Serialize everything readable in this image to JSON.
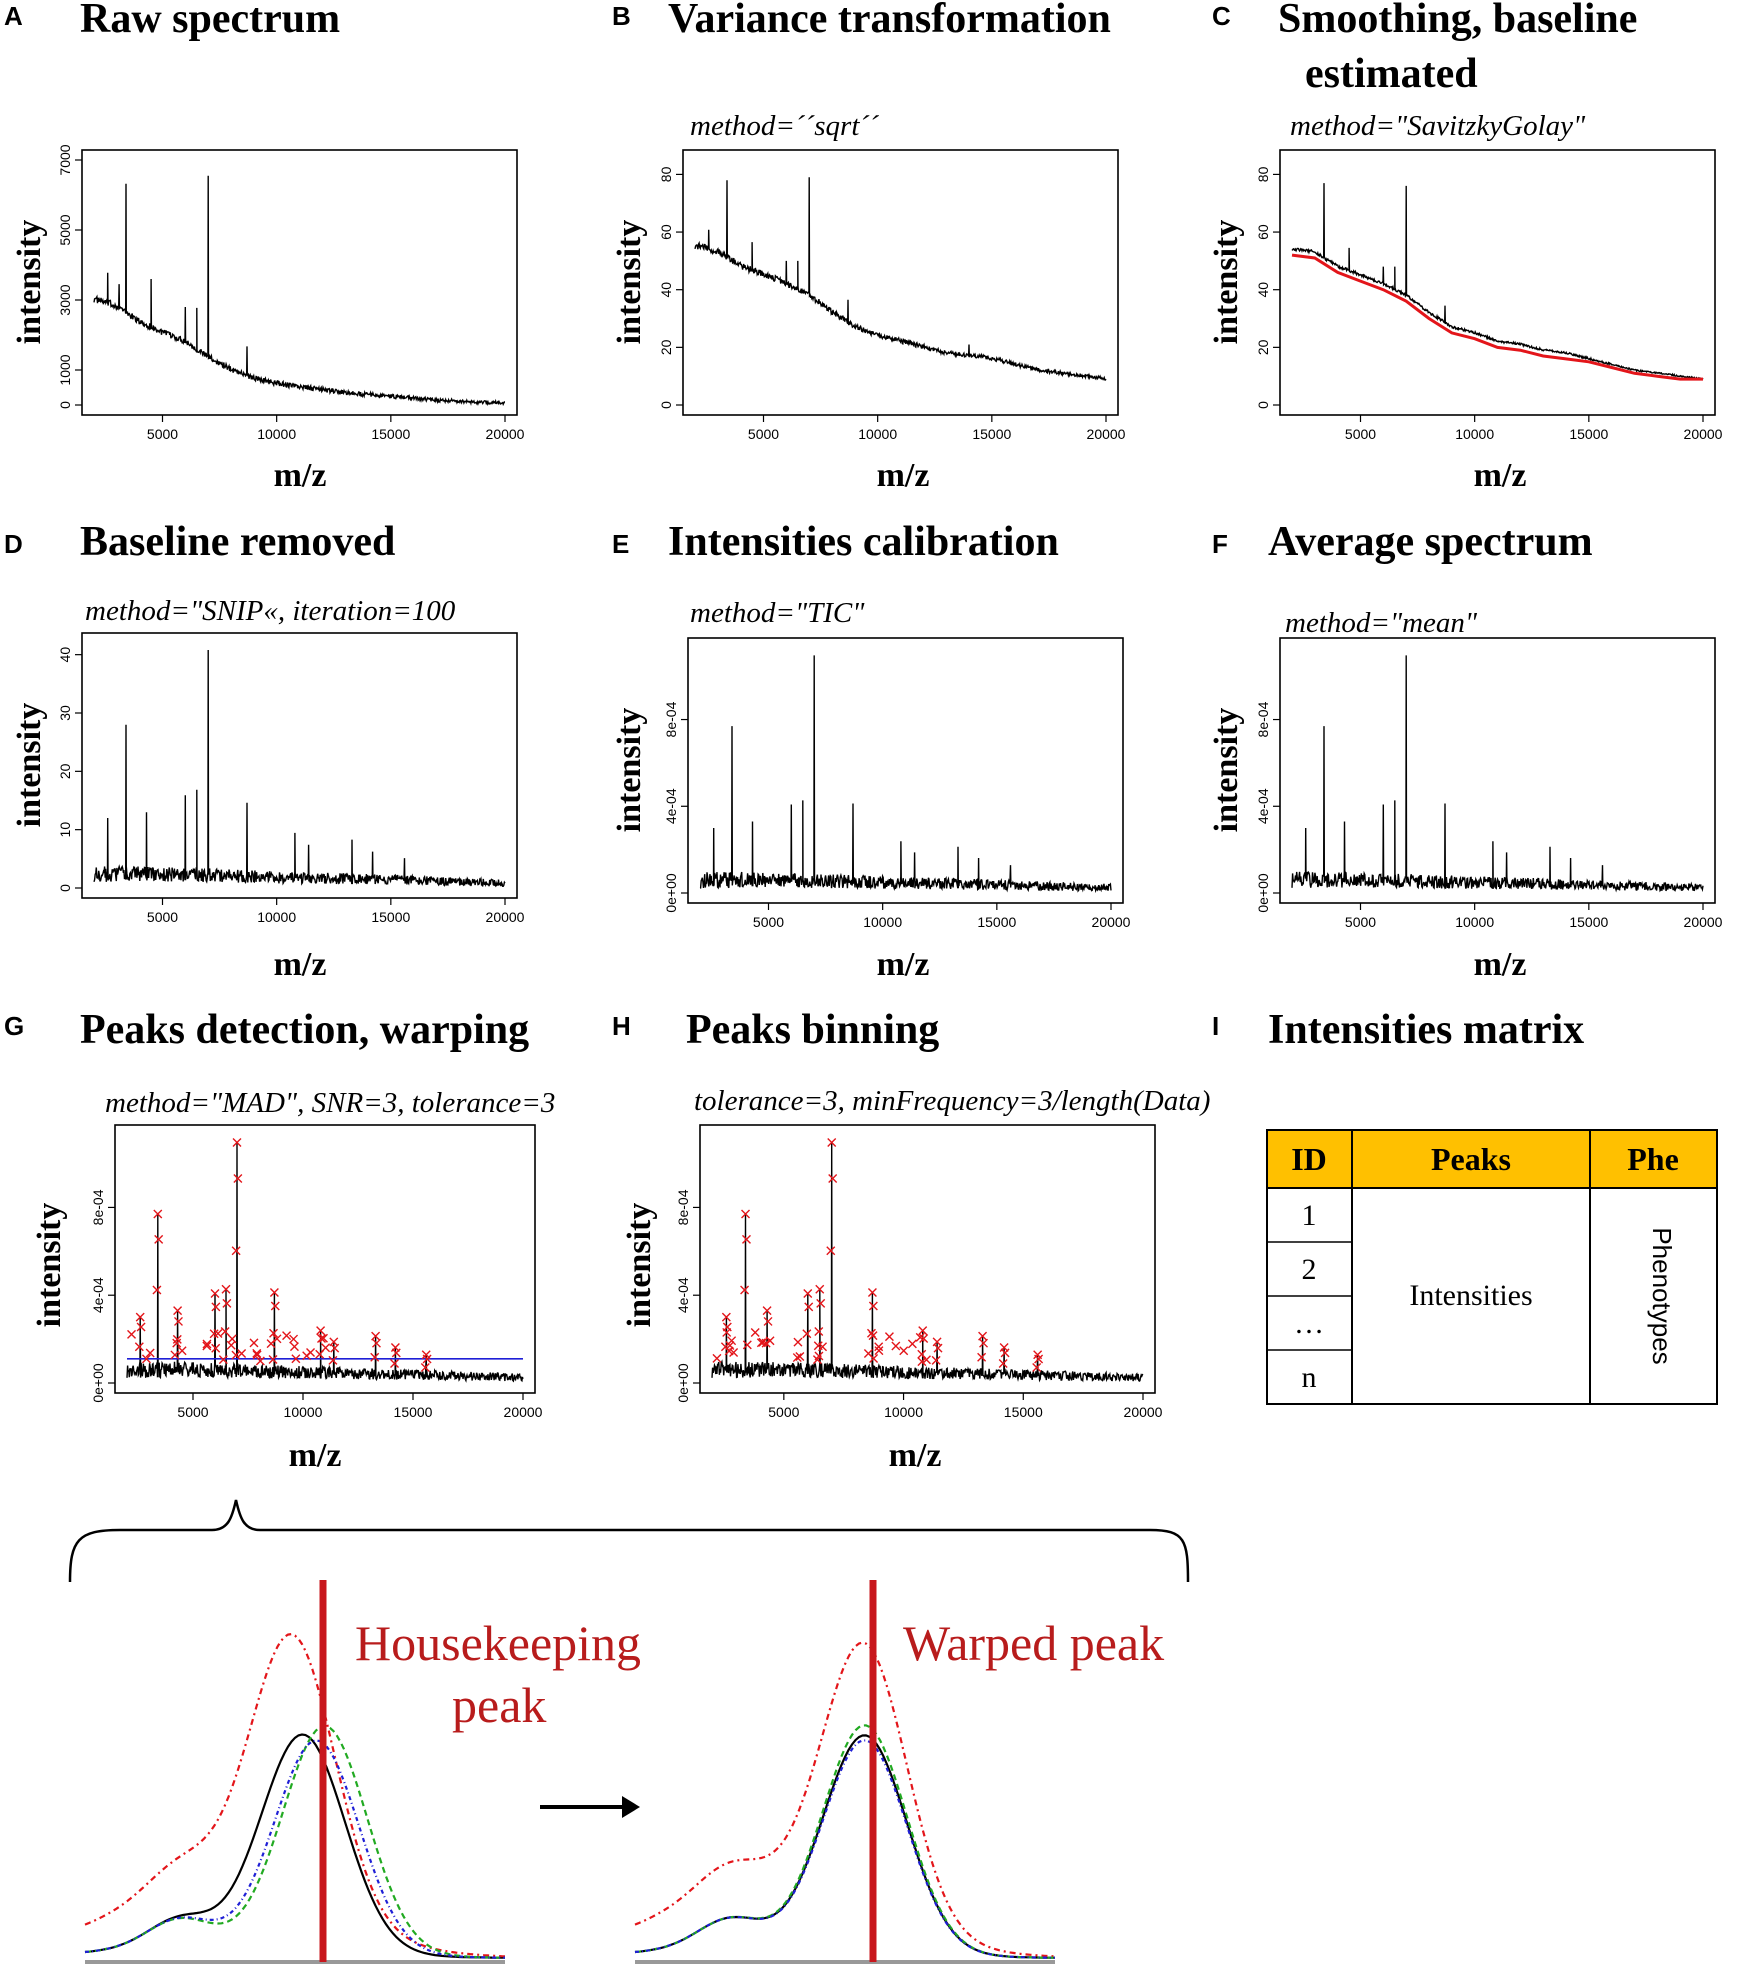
{
  "chart_data": [
    {
      "panel": "A",
      "type": "line",
      "title": "Raw spectrum",
      "method": "",
      "xlabel": "m/z",
      "ylabel": "intensity",
      "xlim": [
        2000,
        20000
      ],
      "ylim": [
        0,
        7000
      ],
      "xticks": [
        "5000",
        "10000",
        "15000",
        "20000"
      ],
      "yticks": [
        "0",
        "1000",
        "3000",
        "5000",
        "7000"
      ],
      "ytick_values": [
        0,
        1000,
        3000,
        5000,
        7000
      ],
      "base_points": [
        [
          2000,
          3000
        ],
        [
          3000,
          2800
        ],
        [
          4000,
          2350
        ],
        [
          5000,
          2050
        ],
        [
          6000,
          1800
        ],
        [
          7000,
          1350
        ],
        [
          8000,
          1000
        ],
        [
          9000,
          750
        ],
        [
          10000,
          600
        ],
        [
          11000,
          500
        ],
        [
          12000,
          420
        ],
        [
          13000,
          330
        ],
        [
          14000,
          280
        ],
        [
          15000,
          230
        ],
        [
          16000,
          180
        ],
        [
          17000,
          130
        ],
        [
          18000,
          90
        ],
        [
          19000,
          60
        ],
        [
          20000,
          50
        ]
      ],
      "noise": 180,
      "peaks": [
        [
          3400,
          3700
        ],
        [
          7000,
          5200
        ],
        [
          4500,
          1400
        ],
        [
          6000,
          1000
        ],
        [
          6500,
          1200
        ],
        [
          8700,
          850
        ],
        [
          2600,
          900
        ],
        [
          3100,
          700
        ]
      ],
      "baseline": null,
      "threshold": null,
      "markers": false
    },
    {
      "panel": "B",
      "type": "line",
      "title": "Variance transformation",
      "method": "method=´´sqrt´´",
      "xlabel": "m/z",
      "ylabel": "intensity",
      "xlim": [
        2000,
        20000
      ],
      "ylim": [
        0,
        85
      ],
      "xticks": [
        "5000",
        "10000",
        "15000",
        "20000"
      ],
      "yticks": [
        "0",
        "20",
        "40",
        "60",
        "80"
      ],
      "ytick_values": [
        0,
        20,
        40,
        60,
        80
      ],
      "base_points": [
        [
          2000,
          55
        ],
        [
          3000,
          53
        ],
        [
          4000,
          48
        ],
        [
          5000,
          45
        ],
        [
          6000,
          42
        ],
        [
          7000,
          38
        ],
        [
          8000,
          32
        ],
        [
          9000,
          27
        ],
        [
          10000,
          24
        ],
        [
          11000,
          22
        ],
        [
          12000,
          20
        ],
        [
          13000,
          18
        ],
        [
          14000,
          17
        ],
        [
          15000,
          16
        ],
        [
          16000,
          14
        ],
        [
          17000,
          12
        ],
        [
          18000,
          11
        ],
        [
          19000,
          10
        ],
        [
          20000,
          9
        ]
      ],
      "noise": 2.2,
      "peaks": [
        [
          3400,
          27
        ],
        [
          7000,
          41
        ],
        [
          4500,
          10
        ],
        [
          6000,
          8
        ],
        [
          6500,
          10
        ],
        [
          8700,
          8
        ],
        [
          2600,
          7
        ],
        [
          14000,
          4
        ]
      ],
      "baseline": null,
      "threshold": null,
      "markers": false
    },
    {
      "panel": "C",
      "type": "line",
      "title": "Smoothing, baseline estimated",
      "title_lines": [
        "Smoothing, baseline",
        "estimated"
      ],
      "method": "method=\"SavitzkyGolay\"",
      "xlabel": "m/z",
      "ylabel": "intensity",
      "xlim": [
        2000,
        20000
      ],
      "ylim": [
        0,
        85
      ],
      "xticks": [
        "5000",
        "10000",
        "15000",
        "20000"
      ],
      "yticks": [
        "0",
        "20",
        "40",
        "60",
        "80"
      ],
      "ytick_values": [
        0,
        20,
        40,
        60,
        80
      ],
      "base_points": [
        [
          2000,
          54
        ],
        [
          3000,
          53
        ],
        [
          4000,
          48
        ],
        [
          5000,
          45
        ],
        [
          6000,
          42
        ],
        [
          7000,
          38
        ],
        [
          8000,
          32
        ],
        [
          9000,
          27
        ],
        [
          10000,
          25
        ],
        [
          11000,
          22
        ],
        [
          12000,
          21
        ],
        [
          13000,
          19
        ],
        [
          14000,
          18
        ],
        [
          15000,
          16
        ],
        [
          16000,
          14
        ],
        [
          17000,
          12
        ],
        [
          18000,
          11
        ],
        [
          19000,
          10
        ],
        [
          20000,
          9
        ]
      ],
      "noise": 1.0,
      "peaks": [
        [
          3400,
          26
        ],
        [
          7000,
          38
        ],
        [
          4500,
          8
        ],
        [
          6000,
          6
        ],
        [
          6500,
          8
        ],
        [
          8700,
          6
        ]
      ],
      "baseline": [
        [
          2000,
          52
        ],
        [
          3000,
          51
        ],
        [
          4000,
          46
        ],
        [
          5000,
          43
        ],
        [
          6000,
          40
        ],
        [
          7000,
          36
        ],
        [
          8000,
          30
        ],
        [
          9000,
          25
        ],
        [
          10000,
          23
        ],
        [
          11000,
          20
        ],
        [
          12000,
          19
        ],
        [
          13000,
          17
        ],
        [
          14000,
          16
        ],
        [
          15000,
          15
        ],
        [
          16000,
          13
        ],
        [
          17000,
          11
        ],
        [
          18000,
          10
        ],
        [
          19000,
          9
        ],
        [
          20000,
          9
        ]
      ],
      "baseline_color": "#e3151a",
      "threshold": null,
      "markers": false
    },
    {
      "panel": "D",
      "type": "line",
      "title": "Baseline removed",
      "method": "method=\"SNIP«, iteration=100",
      "xlabel": "m/z",
      "ylabel": "intensity",
      "xlim": [
        2000,
        20000
      ],
      "ylim": [
        0,
        42
      ],
      "xticks": [
        "5000",
        "10000",
        "15000",
        "20000"
      ],
      "yticks": [
        "0",
        "10",
        "20",
        "30",
        "40"
      ],
      "ytick_values": [
        0,
        10,
        20,
        30,
        40
      ],
      "base_points": [
        [
          2000,
          2
        ],
        [
          5000,
          2
        ],
        [
          10000,
          1.5
        ],
        [
          15000,
          1.2
        ],
        [
          20000,
          0.6
        ]
      ],
      "noise": 2.5,
      "peaks": [
        [
          3400,
          26
        ],
        [
          7000,
          39
        ],
        [
          4300,
          11
        ],
        [
          6000,
          14
        ],
        [
          6500,
          15
        ],
        [
          8700,
          13
        ],
        [
          2600,
          10
        ],
        [
          10800,
          8
        ],
        [
          11400,
          6
        ],
        [
          13300,
          7
        ],
        [
          14200,
          5
        ],
        [
          15600,
          4
        ]
      ],
      "baseline": null,
      "threshold": null,
      "markers": false
    },
    {
      "panel": "E",
      "type": "line",
      "title": "Intensities calibration",
      "method": "method=\"TIC\"",
      "xlabel": "m/z",
      "ylabel": "intensity",
      "xlim": [
        2000,
        20000
      ],
      "ylim": [
        0,
        0.00113
      ],
      "xticks": [
        "5000",
        "10000",
        "15000",
        "20000"
      ],
      "yticks": [
        "0e+00",
        "4e-04",
        "8e-04"
      ],
      "ytick_values": [
        0,
        0.0004,
        0.0008
      ],
      "base_points": [
        [
          2000,
          5e-05
        ],
        [
          5000,
          5e-05
        ],
        [
          10000,
          4e-05
        ],
        [
          15000,
          3e-05
        ],
        [
          20000,
          2e-05
        ]
      ],
      "noise": 7e-05,
      "peaks": [
        [
          3400,
          0.00072
        ],
        [
          7000,
          0.00105
        ],
        [
          4300,
          0.00028
        ],
        [
          6000,
          0.00036
        ],
        [
          6500,
          0.00038
        ],
        [
          8700,
          0.00037
        ],
        [
          2600,
          0.00025
        ],
        [
          10800,
          0.0002
        ],
        [
          11400,
          0.00015
        ],
        [
          13300,
          0.00018
        ],
        [
          14200,
          0.00013
        ],
        [
          15600,
          0.0001
        ]
      ],
      "baseline": null,
      "threshold": null,
      "markers": false
    },
    {
      "panel": "F",
      "type": "line",
      "title": "Average spectrum",
      "method": "method=\"mean\"",
      "xlabel": "m/z",
      "ylabel": "intensity",
      "xlim": [
        2000,
        20000
      ],
      "ylim": [
        0,
        0.00113
      ],
      "xticks": [
        "5000",
        "10000",
        "15000",
        "20000"
      ],
      "yticks": [
        "0e+00",
        "4e-04",
        "8e-04"
      ],
      "ytick_values": [
        0,
        0.0004,
        0.0008
      ],
      "base_points": [
        [
          2000,
          5e-05
        ],
        [
          5000,
          5e-05
        ],
        [
          10000,
          4e-05
        ],
        [
          15000,
          3e-05
        ],
        [
          20000,
          2e-05
        ]
      ],
      "noise": 7e-05,
      "peaks": [
        [
          3400,
          0.00072
        ],
        [
          7000,
          0.00105
        ],
        [
          4300,
          0.00028
        ],
        [
          6000,
          0.00036
        ],
        [
          6500,
          0.00038
        ],
        [
          8700,
          0.00037
        ],
        [
          2600,
          0.00025
        ],
        [
          10800,
          0.0002
        ],
        [
          11400,
          0.00015
        ],
        [
          13300,
          0.00018
        ],
        [
          14200,
          0.00013
        ],
        [
          15600,
          0.0001
        ]
      ],
      "baseline": null,
      "threshold": null,
      "markers": false
    },
    {
      "panel": "G",
      "type": "line",
      "title": "Peaks detection, warping",
      "method": "method=\"MAD\", SNR=3, tolerance=3",
      "xlabel": "m/z",
      "ylabel": "intensity",
      "xlim": [
        2000,
        20000
      ],
      "ylim": [
        0,
        0.00113
      ],
      "xticks": [
        "5000",
        "10000",
        "15000",
        "20000"
      ],
      "yticks": [
        "0e+00",
        "4e-04",
        "8e-04"
      ],
      "ytick_values": [
        0,
        0.0004,
        0.0008
      ],
      "base_points": [
        [
          2000,
          5e-05
        ],
        [
          5000,
          5e-05
        ],
        [
          10000,
          4e-05
        ],
        [
          15000,
          3e-05
        ],
        [
          20000,
          2e-05
        ]
      ],
      "noise": 7e-05,
      "peaks": [
        [
          3400,
          0.00072
        ],
        [
          7000,
          0.00105
        ],
        [
          4300,
          0.00028
        ],
        [
          6000,
          0.00036
        ],
        [
          6500,
          0.00038
        ],
        [
          8700,
          0.00037
        ],
        [
          2600,
          0.00025
        ],
        [
          10800,
          0.0002
        ],
        [
          11400,
          0.00015
        ],
        [
          13300,
          0.00018
        ],
        [
          14200,
          0.00013
        ],
        [
          15600,
          0.0001
        ]
      ],
      "baseline": null,
      "threshold": 0.00011,
      "threshold_color": "#1f1fd6",
      "markers": true,
      "marker_color": "#e3151a"
    },
    {
      "panel": "H",
      "type": "line",
      "title": "Peaks binning",
      "method": "tolerance=3, minFrequency=3/length(Data)",
      "xlabel": "m/z",
      "ylabel": "intensity",
      "xlim": [
        2000,
        20000
      ],
      "ylim": [
        0,
        0.00113
      ],
      "xticks": [
        "5000",
        "10000",
        "15000",
        "20000"
      ],
      "yticks": [
        "0e+00",
        "4e-04",
        "8e-04"
      ],
      "ytick_values": [
        0,
        0.0004,
        0.0008
      ],
      "base_points": [
        [
          2000,
          5e-05
        ],
        [
          5000,
          5e-05
        ],
        [
          10000,
          4e-05
        ],
        [
          15000,
          3e-05
        ],
        [
          20000,
          2e-05
        ]
      ],
      "noise": 7e-05,
      "peaks": [
        [
          3400,
          0.00072
        ],
        [
          7000,
          0.00105
        ],
        [
          4300,
          0.00028
        ],
        [
          6000,
          0.00036
        ],
        [
          6500,
          0.00038
        ],
        [
          8700,
          0.00037
        ],
        [
          2600,
          0.00025
        ],
        [
          10800,
          0.0002
        ],
        [
          11400,
          0.00015
        ],
        [
          13300,
          0.00018
        ],
        [
          14200,
          0.00013
        ],
        [
          15600,
          0.0001
        ]
      ],
      "baseline": null,
      "threshold": null,
      "markers": true,
      "marker_color": "#e3151a"
    }
  ],
  "matrix": {
    "letter": "I",
    "title": "Intensities matrix",
    "header_color": "#ffc000",
    "headers": [
      "ID",
      "Peaks",
      "Phe"
    ],
    "ids": [
      "1",
      "2",
      "…",
      "n"
    ],
    "peaks_label": "Intensities",
    "phe_label": "Phenotypes"
  },
  "warping": {
    "left_label_line1": "Housekeeping",
    "left_label_line2": "peak",
    "right_label": "Warped peak",
    "label_color": "#b81c1c",
    "peak_line_color": "#c8171d",
    "series_colors": [
      "#000000",
      "#e3151a",
      "#22aa22",
      "#1f1fd6"
    ]
  }
}
